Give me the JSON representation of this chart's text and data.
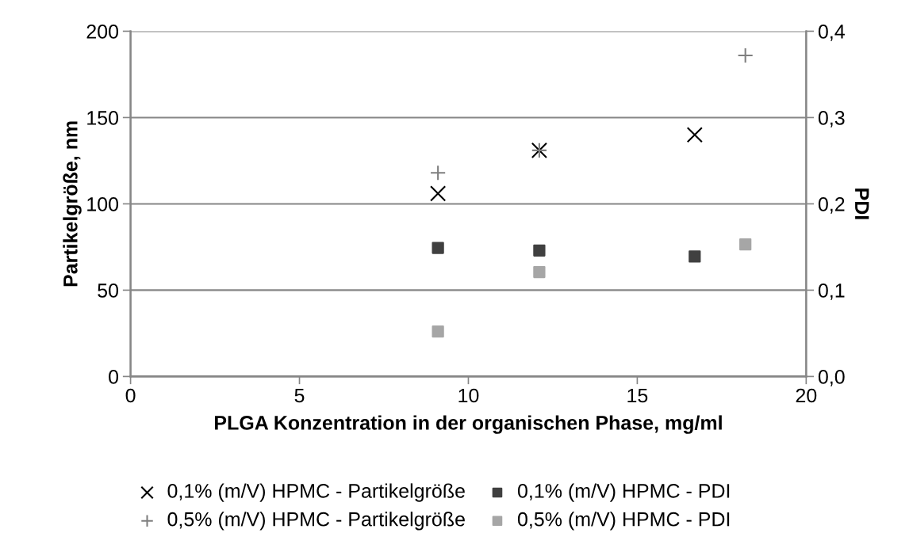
{
  "chart_data": {
    "type": "scatter",
    "xlabel": "PLGA Konzentration in der organischen Phase, mg/ml",
    "ylabel": "Partikelgröße, nm",
    "y2label": "PDI",
    "xlim": [
      0,
      20
    ],
    "xticks": [
      0,
      5,
      10,
      15,
      20
    ],
    "ylim": [
      0,
      200
    ],
    "yticks": [
      0,
      50,
      100,
      150,
      200
    ],
    "y2lim": [
      0,
      0.4
    ],
    "y2ticks": [
      {
        "value": 0,
        "label": "0,0"
      },
      {
        "value": 0.1,
        "label": "0,1"
      },
      {
        "value": 0.2,
        "label": "0,2"
      },
      {
        "value": 0.3,
        "label": "0,3"
      },
      {
        "value": 0.4,
        "label": "0,4"
      }
    ],
    "grid": "y",
    "legend": "bottom",
    "series": [
      {
        "name": "0,1% (m/V) HPMC - Partikelgröße",
        "color": "#000000",
        "marker": "cross",
        "x": [
          9.1,
          12.1,
          16.7
        ],
        "values": [
          106,
          131,
          140
        ]
      },
      {
        "name": "0,5% (m/V) HPMC - Partikelgröße",
        "color": "#7f7f7f",
        "marker": "plus",
        "x": [
          9.1,
          12.1,
          18.2
        ],
        "values": [
          118,
          131,
          186
        ]
      },
      {
        "name": "0,1% (m/V) HPMC - PDI",
        "color": "#404040",
        "marker": "square",
        "axis": "y2",
        "x": [
          9.1,
          12.1,
          16.7
        ],
        "values": [
          0.149,
          0.146,
          0.139
        ]
      },
      {
        "name": "0,5% (m/V) HPMC - PDI",
        "color": "#a6a6a6",
        "marker": "square",
        "axis": "y2",
        "x": [
          9.1,
          12.1,
          18.2
        ],
        "values": [
          0.052,
          0.121,
          0.153
        ]
      }
    ]
  }
}
